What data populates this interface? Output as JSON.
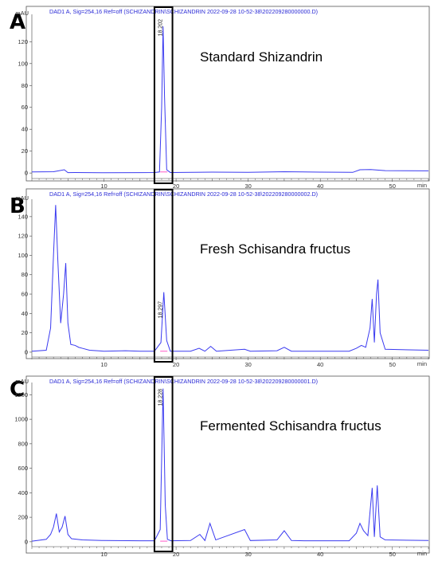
{
  "chart_data": [
    {
      "type": "line",
      "panel_label": "A",
      "header": "DAD1 A, Sig=254,16 Ref=off (SCHIZANDRIN\\SCHIZANDRIN 2022-09-28 10-52-38\\202209280000000.D)",
      "annotation": "Standard Shizandrin",
      "ylabel": "mAU",
      "xlabel": "min",
      "xlim": [
        0,
        55
      ],
      "ylim": [
        -5,
        145
      ],
      "xticks": [
        10,
        20,
        30,
        40,
        50
      ],
      "yticks": [
        0,
        20,
        40,
        60,
        80,
        100,
        120
      ],
      "peak_label": "18.202",
      "highlight_range": [
        17.0,
        19.5
      ],
      "series": [
        {
          "color": "#3a3af0",
          "points": [
            [
              0,
              1
            ],
            [
              3,
              1.2
            ],
            [
              4.5,
              3
            ],
            [
              5,
              0.4
            ],
            [
              6,
              0.5
            ],
            [
              10,
              0.3
            ],
            [
              15,
              0.4
            ],
            [
              17,
              0.5
            ],
            [
              17.7,
              1
            ],
            [
              18.0,
              60
            ],
            [
              18.2,
              134
            ],
            [
              18.4,
              70
            ],
            [
              18.7,
              3
            ],
            [
              19.2,
              0.5
            ],
            [
              25,
              0.8
            ],
            [
              30,
              0.6
            ],
            [
              35,
              1.2
            ],
            [
              40,
              0.8
            ],
            [
              44.5,
              0.6
            ],
            [
              45.5,
              3
            ],
            [
              47,
              3.2
            ],
            [
              49,
              2.2
            ],
            [
              55,
              2
            ]
          ]
        }
      ]
    },
    {
      "type": "line",
      "panel_label": "B",
      "header": "DAD1 A, Sig=254,16 Ref=off (SCHIZANDRIN\\SCHIZANDRIN 2022-09-28 10-52-38\\202209280000002.D)",
      "annotation": "Fresh Schisandra fructus",
      "ylabel": "mAU",
      "xlabel": "min",
      "xlim": [
        0,
        55
      ],
      "ylim": [
        -5,
        158
      ],
      "xticks": [
        10,
        20,
        30,
        40,
        50
      ],
      "yticks": [
        0,
        20,
        40,
        60,
        80,
        100,
        120,
        140
      ],
      "peak_label": "18.297",
      "highlight_range": [
        17.0,
        19.5
      ],
      "series": [
        {
          "color": "#3a3af0",
          "points": [
            [
              0,
              1
            ],
            [
              2,
              2
            ],
            [
              2.6,
              25
            ],
            [
              3.0,
              100
            ],
            [
              3.3,
              152
            ],
            [
              3.6,
              95
            ],
            [
              4.0,
              30
            ],
            [
              4.4,
              60
            ],
            [
              4.7,
              92
            ],
            [
              5.0,
              30
            ],
            [
              5.4,
              8
            ],
            [
              6,
              7
            ],
            [
              6.5,
              5
            ],
            [
              7,
              4
            ],
            [
              8,
              2
            ],
            [
              10,
              1
            ],
            [
              13,
              1.5
            ],
            [
              15,
              1
            ],
            [
              17,
              1
            ],
            [
              17.9,
              10
            ],
            [
              18.3,
              62
            ],
            [
              18.7,
              12
            ],
            [
              19.2,
              1
            ],
            [
              22,
              1
            ],
            [
              23.2,
              4
            ],
            [
              24,
              1
            ],
            [
              24.8,
              6
            ],
            [
              25.6,
              1
            ],
            [
              29.5,
              3
            ],
            [
              30.3,
              1
            ],
            [
              34,
              1.5
            ],
            [
              35,
              5
            ],
            [
              36,
              1
            ],
            [
              40,
              1
            ],
            [
              44,
              1
            ],
            [
              45,
              4
            ],
            [
              45.7,
              7
            ],
            [
              46.3,
              5
            ],
            [
              46.9,
              25
            ],
            [
              47.2,
              55
            ],
            [
              47.5,
              10
            ],
            [
              47.8,
              60
            ],
            [
              48.0,
              75
            ],
            [
              48.3,
              20
            ],
            [
              49,
              3
            ],
            [
              55,
              2
            ]
          ]
        }
      ]
    },
    {
      "type": "line",
      "panel_label": "C",
      "header": "DAD1 A, Sig=254,16 Ref=off (SCHIZANDRIN\\SCHIZANDRIN 2022-09-28 10-52-38\\202209280000001.D)",
      "annotation": "Fermented Schisandra fructus",
      "ylabel": "mAU",
      "xlabel": "min",
      "xlim": [
        0,
        55
      ],
      "ylim": [
        -40,
        1300
      ],
      "xticks": [
        10,
        20,
        30,
        40,
        50
      ],
      "yticks": [
        0,
        200,
        400,
        600,
        800,
        1000,
        1200
      ],
      "peak_label": "18.228",
      "highlight_range": [
        17.0,
        19.5
      ],
      "series": [
        {
          "color": "#3a3af0",
          "points": [
            [
              0,
              5
            ],
            [
              2,
              20
            ],
            [
              2.6,
              60
            ],
            [
              3.0,
              120
            ],
            [
              3.4,
              230
            ],
            [
              3.8,
              80
            ],
            [
              4.2,
              120
            ],
            [
              4.6,
              210
            ],
            [
              5.0,
              60
            ],
            [
              5.5,
              25
            ],
            [
              7,
              15
            ],
            [
              10,
              10
            ],
            [
              15,
              8
            ],
            [
              17,
              8
            ],
            [
              17.8,
              100
            ],
            [
              18.2,
              1250
            ],
            [
              18.5,
              300
            ],
            [
              18.8,
              20
            ],
            [
              19.3,
              8
            ],
            [
              22,
              10
            ],
            [
              23.3,
              60
            ],
            [
              24,
              10
            ],
            [
              24.7,
              150
            ],
            [
              25.5,
              15
            ],
            [
              29.5,
              100
            ],
            [
              30.3,
              10
            ],
            [
              34,
              15
            ],
            [
              35,
              90
            ],
            [
              36,
              10
            ],
            [
              38,
              8
            ],
            [
              40,
              8
            ],
            [
              44,
              8
            ],
            [
              45,
              70
            ],
            [
              45.5,
              150
            ],
            [
              46,
              90
            ],
            [
              46.6,
              50
            ],
            [
              47.2,
              440
            ],
            [
              47.5,
              40
            ],
            [
              47.9,
              460
            ],
            [
              48.3,
              40
            ],
            [
              49,
              15
            ],
            [
              55,
              10
            ]
          ]
        }
      ]
    }
  ]
}
